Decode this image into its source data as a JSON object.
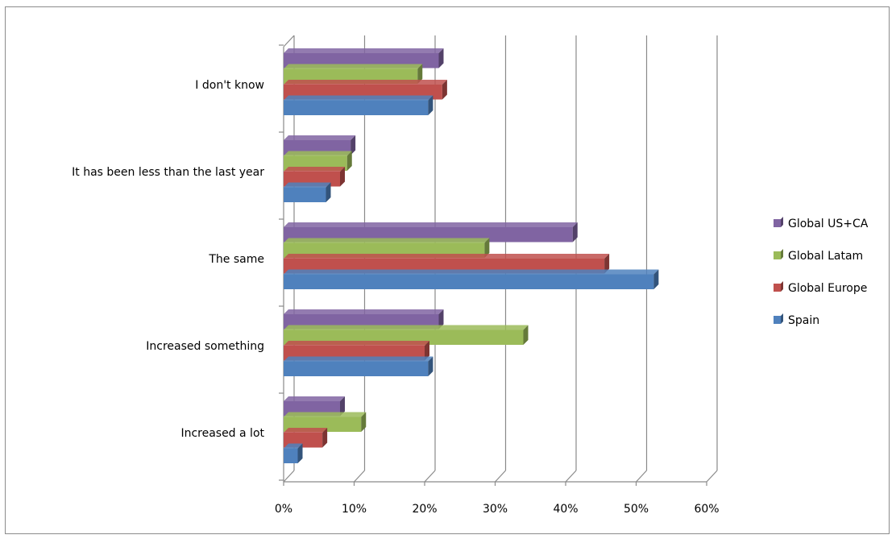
{
  "chart_data": {
    "type": "bar",
    "orientation": "horizontal",
    "style": "3d-clustered",
    "categories": [
      "I don't know",
      "It has been less than the last year",
      "The same",
      "Increased something",
      "Increased a lot"
    ],
    "series": [
      {
        "name": "Global US+CA",
        "color": "#8064a2",
        "values": [
          22,
          9.5,
          41,
          22,
          8
        ]
      },
      {
        "name": "Global Latam",
        "color": "#9bbb59",
        "values": [
          19,
          9,
          28.5,
          34,
          11
        ]
      },
      {
        "name": "Global Europe",
        "color": "#c0504d",
        "values": [
          22.5,
          8,
          45.5,
          20,
          5.5
        ]
      },
      {
        "name": "Spain",
        "color": "#4f81bd",
        "values": [
          20.5,
          6,
          52.5,
          20.5,
          2
        ]
      }
    ],
    "x_ticks": [
      "0%",
      "10%",
      "20%",
      "30%",
      "40%",
      "50%",
      "60%"
    ],
    "xlim": [
      0,
      60
    ],
    "value_unit": "%",
    "grid": true,
    "legend_position": "right"
  }
}
